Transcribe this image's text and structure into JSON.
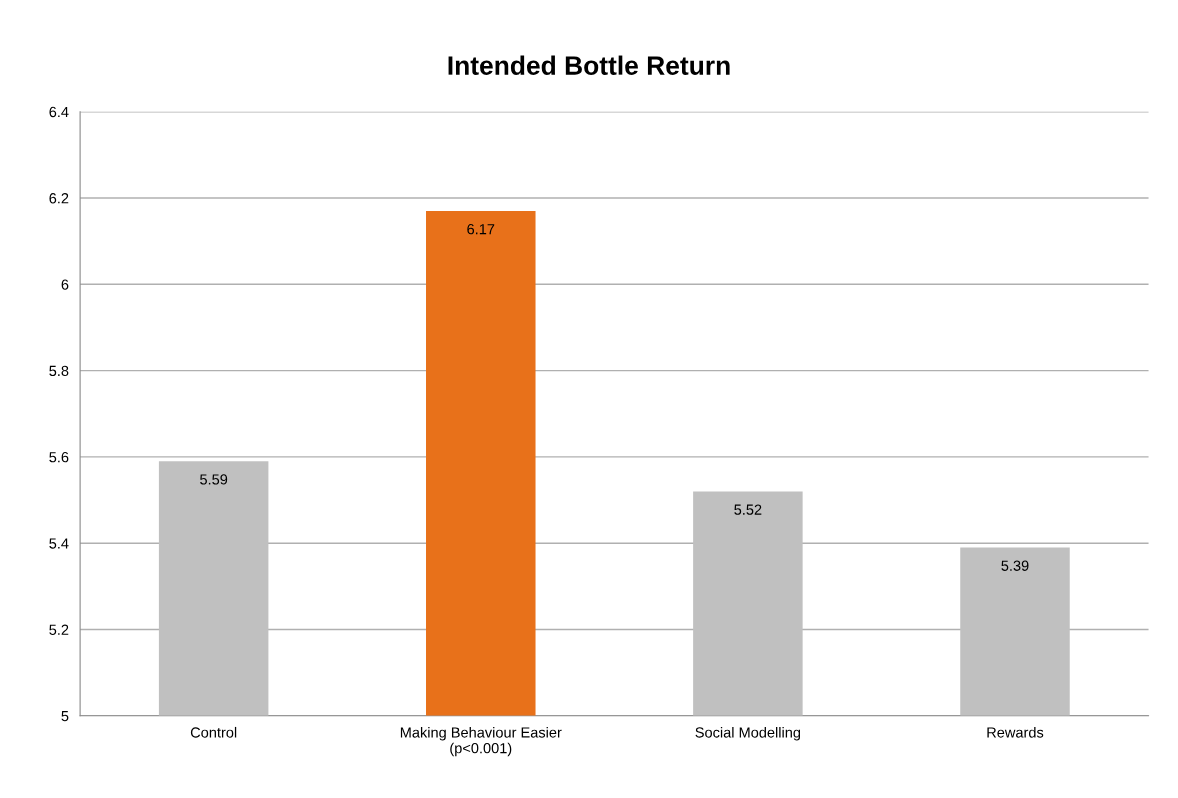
{
  "chart_data": {
    "type": "bar",
    "title": "Intended Bottle Return",
    "categories": [
      "Control",
      "Making Behaviour Easier\n(p<0.001)",
      "Social Modelling",
      "Rewards"
    ],
    "values": [
      5.59,
      6.17,
      5.52,
      5.39
    ],
    "colors": [
      "#c0c0c0",
      "#e8711a",
      "#c0c0c0",
      "#c0c0c0"
    ],
    "ylim": [
      5,
      6.4
    ],
    "yticks": [
      5,
      5.2,
      5.4,
      5.6,
      5.8,
      6,
      6.2,
      6.4
    ],
    "grid": "y",
    "data_labels": true
  }
}
